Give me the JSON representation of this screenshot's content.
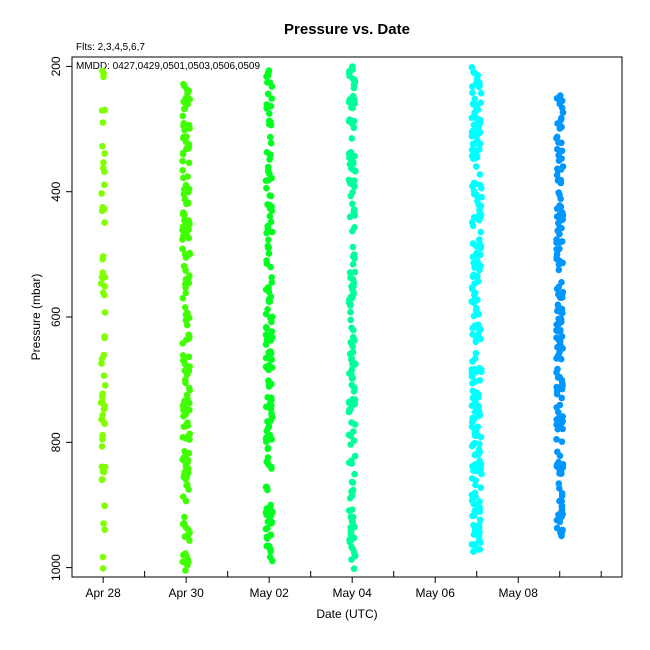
{
  "chart_data": {
    "type": "scatter",
    "title": "Pressure  vs. Date",
    "fits_note": "Flts: 2,3,4,5,6,7",
    "mmdd_note": "MMDD: 0427,0429,0501,0503,0506,0509",
    "xlabel": "Date (UTC)",
    "ylabel": "Pressure (mbar)",
    "y_inverted": true,
    "ylim": [
      1015,
      185
    ],
    "xlim": [
      "2024-04-27T06:00",
      "2024-05-10T12:00"
    ],
    "x_ticks": [
      "Apr 28",
      "Apr 30",
      "May 02",
      "May 04",
      "May 06",
      "May 08"
    ],
    "x_tick_dates": [
      "04-28",
      "04-30",
      "05-02",
      "05-04",
      "05-06",
      "05-08"
    ],
    "y_ticks": [
      200,
      400,
      600,
      800,
      1000
    ],
    "grid": false,
    "series": [
      {
        "color": "#80ff00",
        "x_date": "04-28",
        "p_min": 200,
        "p_max": 1005,
        "n": 60,
        "jitter": 0.05
      },
      {
        "color": "#40ff00",
        "x_date": "04-30",
        "p_min": 218,
        "p_max": 1010,
        "n": 170,
        "jitter": 0.09
      },
      {
        "color": "#00ff20",
        "x_date": "05-02",
        "p_min": 205,
        "p_max": 998,
        "n": 160,
        "jitter": 0.08
      },
      {
        "color": "#00ff9a",
        "x_date": "05-04",
        "p_min": 198,
        "p_max": 1005,
        "n": 160,
        "jitter": 0.08
      },
      {
        "color": "#00ffff",
        "x_date": "05-07",
        "p_min": 198,
        "p_max": 975,
        "n": 230,
        "jitter": 0.12
      },
      {
        "color": "#0096ff",
        "x_date": "05-09",
        "p_min": 238,
        "p_max": 965,
        "n": 170,
        "jitter": 0.08
      }
    ]
  }
}
